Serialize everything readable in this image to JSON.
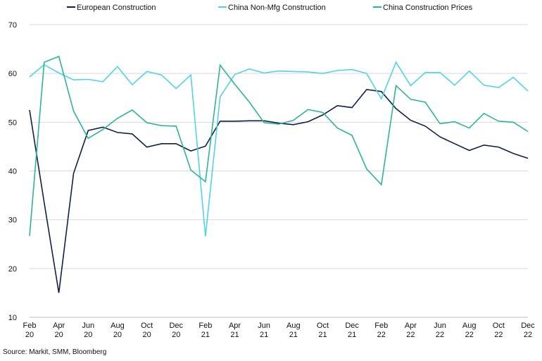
{
  "chart_data": {
    "type": "line",
    "title": "",
    "xlabel": "",
    "ylabel": "",
    "ylim": [
      10,
      70
    ],
    "yticks": [
      10,
      20,
      30,
      40,
      50,
      60,
      70
    ],
    "grid": "horizontal",
    "legend_position": "top",
    "source": "Source: Markit, SMM, Bloomberg",
    "x": [
      "Feb 20",
      "Mar 20",
      "Apr 20",
      "May 20",
      "Jun 20",
      "Jul 20",
      "Aug 20",
      "Sep 20",
      "Oct 20",
      "Nov 20",
      "Dec 20",
      "Jan 21",
      "Feb 21",
      "Mar 21",
      "Apr 21",
      "May 21",
      "Jun 21",
      "Jul 21",
      "Aug 21",
      "Sep 21",
      "Oct 21",
      "Nov 21",
      "Dec 21",
      "Jan 22",
      "Feb 22",
      "Mar 22",
      "Apr 22",
      "May 22",
      "Jun 22",
      "Jul 22",
      "Aug 22",
      "Sep 22",
      "Oct 22",
      "Nov 22",
      "Dec 22"
    ],
    "tick_labels": [
      {
        "index": 0,
        "line1": "Feb",
        "line2": "20"
      },
      {
        "index": 2,
        "line1": "Apr",
        "line2": "20"
      },
      {
        "index": 4,
        "line1": "Jun",
        "line2": "20"
      },
      {
        "index": 6,
        "line1": "Aug",
        "line2": "20"
      },
      {
        "index": 8,
        "line1": "Oct",
        "line2": "20"
      },
      {
        "index": 10,
        "line1": "Dec",
        "line2": "20"
      },
      {
        "index": 12,
        "line1": "Feb",
        "line2": "21"
      },
      {
        "index": 14,
        "line1": "Apr",
        "line2": "21"
      },
      {
        "index": 16,
        "line1": "Jun",
        "line2": "21"
      },
      {
        "index": 18,
        "line1": "Aug",
        "line2": "21"
      },
      {
        "index": 20,
        "line1": "Oct",
        "line2": "21"
      },
      {
        "index": 22,
        "line1": "Dec",
        "line2": "21"
      },
      {
        "index": 24,
        "line1": "Feb",
        "line2": "22"
      },
      {
        "index": 26,
        "line1": "Apr",
        "line2": "22"
      },
      {
        "index": 28,
        "line1": "Jun",
        "line2": "22"
      },
      {
        "index": 30,
        "line1": "Aug",
        "line2": "22"
      },
      {
        "index": 32,
        "line1": "Oct",
        "line2": "22"
      },
      {
        "index": 34,
        "line1": "Dec",
        "line2": "22"
      }
    ],
    "series": [
      {
        "name": "European Construction",
        "color": "#0f1f47",
        "values": [
          52.5,
          33.5,
          15.0,
          39.5,
          48.3,
          49.0,
          47.9,
          47.6,
          44.9,
          45.6,
          45.6,
          44.1,
          45.1,
          50.2,
          50.2,
          50.3,
          50.3,
          49.8,
          49.5,
          50.1,
          51.5,
          53.4,
          53.0,
          56.7,
          56.3,
          52.8,
          50.4,
          49.2,
          47.0,
          45.6,
          44.2,
          45.3,
          44.9,
          43.6,
          42.6
        ]
      },
      {
        "name": "China Non-Mfg Construction",
        "color": "#4fd3ec",
        "values": [
          59.3,
          61.8,
          60.1,
          58.7,
          58.8,
          58.3,
          61.4,
          57.7,
          60.4,
          59.7,
          56.9,
          59.7,
          26.6,
          55.2,
          59.8,
          60.9,
          60.1,
          60.5,
          60.4,
          60.3,
          60.0,
          60.6,
          60.8,
          60.0,
          54.8,
          62.3,
          57.5,
          60.2,
          60.2,
          57.6,
          60.5,
          57.6,
          57.1,
          59.2,
          56.4
        ]
      },
      {
        "name": "China Construction Prices",
        "color": "#2bb596",
        "values": [
          26.7,
          62.3,
          63.5,
          52.3,
          46.7,
          48.5,
          50.8,
          52.5,
          49.9,
          49.3,
          49.2,
          40.2,
          37.8,
          61.7,
          57.8,
          54.1,
          49.9,
          49.6,
          50.4,
          52.6,
          52.0,
          48.8,
          47.3,
          40.4,
          37.2,
          57.5,
          54.7,
          54.1,
          49.7,
          50.1,
          48.8,
          51.8,
          50.2,
          50.0,
          48.1
        ]
      }
    ]
  }
}
